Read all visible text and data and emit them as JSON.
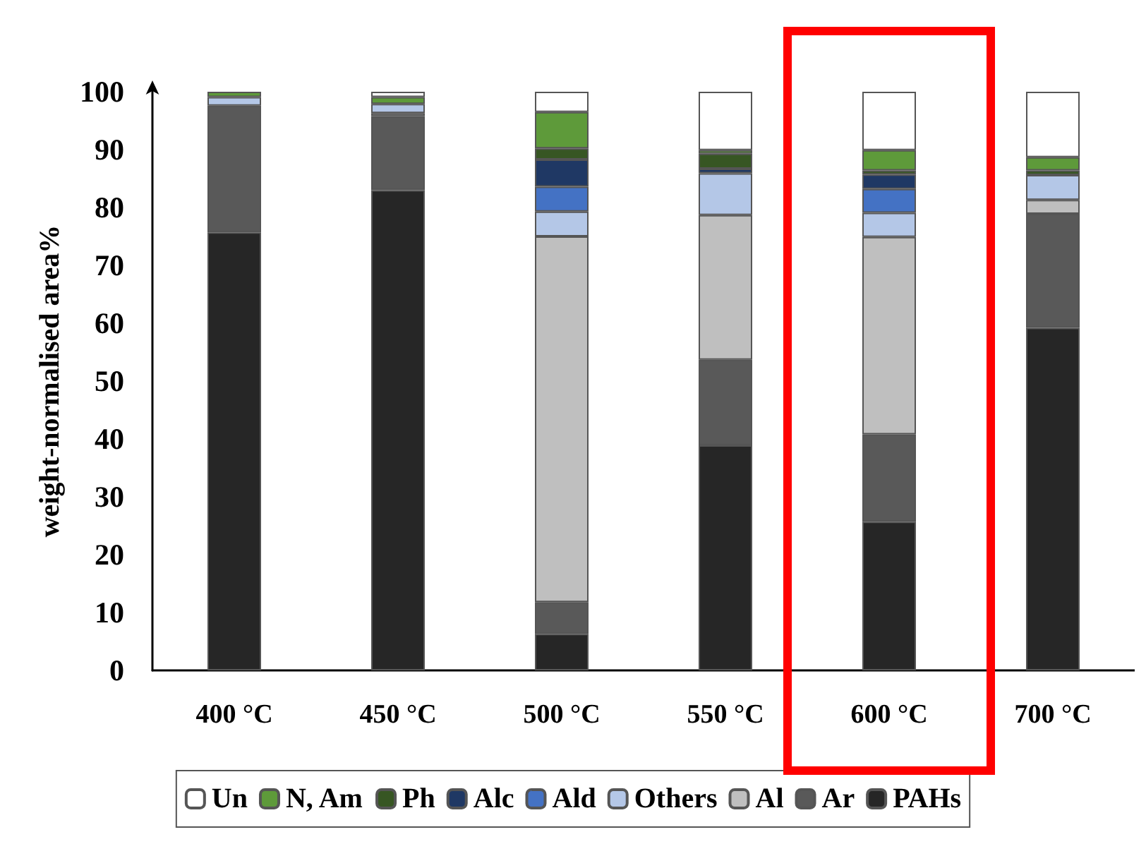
{
  "chart_data": {
    "type": "bar",
    "stacked": true,
    "ylabel": "weight-normalised area%",
    "categories": [
      "400 °C",
      "450 °C",
      "500 °C",
      "550 °C",
      "600 °C",
      "700 °C"
    ],
    "ylim": [
      0,
      100
    ],
    "yticks": [
      0,
      10,
      20,
      30,
      40,
      50,
      60,
      70,
      80,
      90,
      100
    ],
    "grid": false,
    "legend": "bottom",
    "series": [
      {
        "name": "PAHs",
        "color": "#262626",
        "values": [
          75.7,
          83.0,
          6.3,
          38.9,
          25.7,
          59.2
        ]
      },
      {
        "name": "Ar",
        "color": "#595959",
        "values": [
          21.9,
          12.8,
          5.5,
          14.8,
          15.1,
          19.7
        ]
      },
      {
        "name": "Al",
        "color": "#bfbfbf",
        "values": [
          null,
          0.5,
          63.2,
          25.0,
          34.1,
          2.4
        ]
      },
      {
        "name": "Others",
        "color": "#b4c7e7",
        "values": [
          1.5,
          1.6,
          4.3,
          7.2,
          4.2,
          4.3
        ]
      },
      {
        "name": "Ald",
        "color": "#4472c4",
        "values": [
          null,
          null,
          4.3,
          null,
          4.1,
          null
        ]
      },
      {
        "name": "Alc",
        "color": "#1f3864",
        "values": [
          null,
          null,
          4.7,
          0.8,
          2.5,
          null
        ]
      },
      {
        "name": "Ph",
        "color": "#375623",
        "values": [
          null,
          null,
          1.9,
          2.6,
          0.7,
          0.8
        ]
      },
      {
        "name": "N, Am",
        "color": "#5e9a3a",
        "values": [
          0.9,
          1.2,
          6.3,
          0.6,
          3.5,
          2.3
        ]
      },
      {
        "name": "Un",
        "color": "#ffffff",
        "values": [
          null,
          0.9,
          3.5,
          10.1,
          10.1,
          11.3
        ]
      }
    ]
  }
}
